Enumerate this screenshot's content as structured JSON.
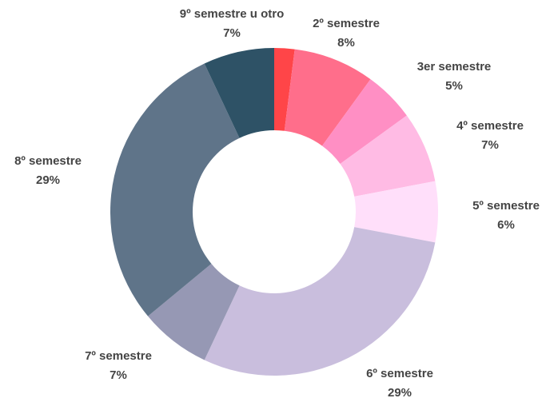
{
  "chart_data": {
    "type": "donut",
    "categories": [
      null,
      "2º semestre",
      "3er semestre",
      "4º semestre",
      "5º semestre",
      "6º semestre",
      "7º semestre",
      "8º semestre",
      "9º semestre u otro"
    ],
    "values": [
      2,
      8,
      5,
      7,
      6,
      29,
      7,
      29,
      7
    ],
    "value_labels": [
      null,
      "8%",
      "5%",
      "7%",
      "6%",
      "29%",
      "7%",
      "29%",
      "7%"
    ],
    "colors": [
      "#ff4548",
      "#ff6e8b",
      "#ff8fc4",
      "#ffbbe4",
      "#ffdffa",
      "#c9bedd",
      "#9698b4",
      "#5f7489",
      "#2e5266"
    ]
  }
}
